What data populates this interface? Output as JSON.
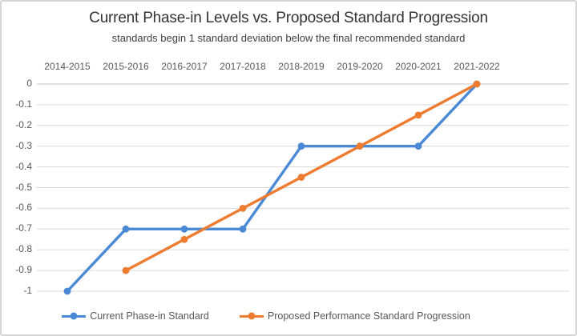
{
  "chart_data": {
    "type": "line",
    "title": "Current Phase-in Levels vs. Proposed Standard Progression",
    "subtitle": "standards begin 1 standard deviation below the final recommended standard",
    "categories": [
      "2014-2015",
      "2015-2016",
      "2016-2017",
      "2017-2018",
      "2018-2019",
      "2019-2020",
      "2020-2021",
      "2021-2022"
    ],
    "y_tick_labels": [
      "0",
      "-0.1",
      "-0.2",
      "-0.3",
      "-0.4",
      "-0.5",
      "-0.6",
      "-0.7",
      "-0.8",
      "-0.9",
      "-1"
    ],
    "ylim": [
      -1,
      0
    ],
    "grid": true,
    "legend_position": "bottom",
    "series": [
      {
        "name": "Current Phase-in Standard",
        "color": "#4a89d5",
        "values": [
          -1,
          -0.7,
          -0.7,
          -0.7,
          -0.3,
          -0.3,
          -0.3,
          0
        ]
      },
      {
        "name": "Proposed Performance Standard Progression",
        "color": "#ed7b30",
        "values": [
          null,
          -0.9,
          -0.75,
          -0.6,
          -0.45,
          -0.3,
          -0.15,
          0
        ]
      }
    ],
    "colors": {
      "gridline": "#d9d9d9",
      "zero_axis_line": "#c3c3c3",
      "axis_text": "#595959",
      "title_text": "#333333"
    }
  }
}
